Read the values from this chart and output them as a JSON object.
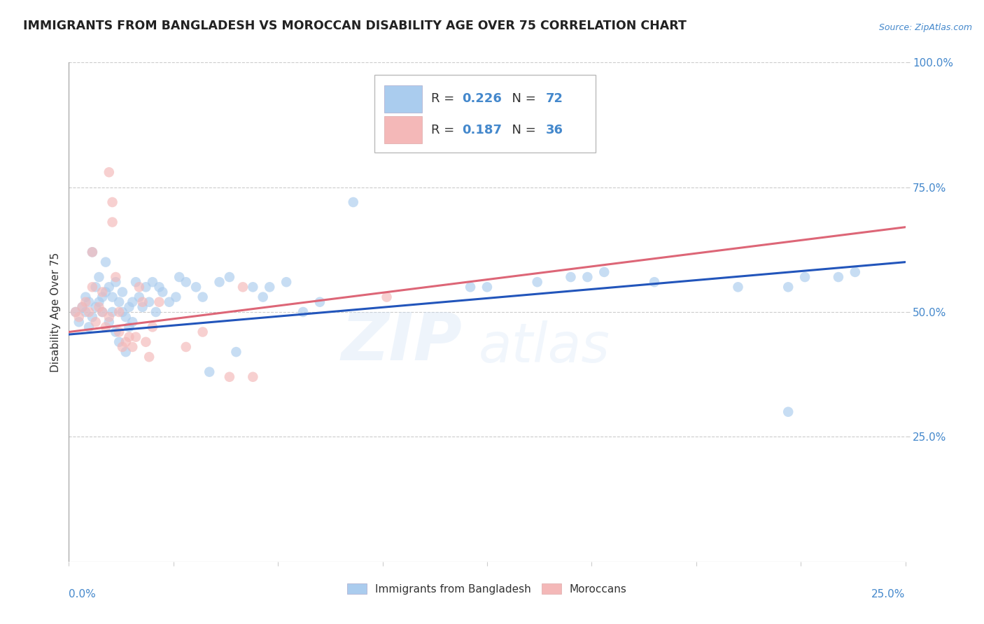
{
  "title": "IMMIGRANTS FROM BANGLADESH VS MOROCCAN DISABILITY AGE OVER 75 CORRELATION CHART",
  "source": "Source: ZipAtlas.com",
  "ylabel": "Disability Age Over 75",
  "watermark": "ZIPAtlas",
  "legend_entry1": {
    "color": "#a8c4e0",
    "r": "0.226",
    "n": "72",
    "label": "Immigrants from Bangladesh"
  },
  "legend_entry2": {
    "color": "#f4b8b8",
    "r": "0.187",
    "n": "36",
    "label": "Moroccans"
  },
  "bg_color": "#ffffff",
  "grid_color": "#cccccc",
  "blue_line_color": "#2255bb",
  "pink_line_color": "#dd6677",
  "blue_dot_color": "#aaccee",
  "pink_dot_color": "#f4b8b8",
  "axis_color": "#4488cc",
  "title_color": "#222222",
  "title_fontsize": 12.5,
  "label_fontsize": 11,
  "tick_fontsize": 11,
  "dot_size": 110,
  "dot_alpha": 0.65,
  "xlim": [
    0.0,
    0.25
  ],
  "ylim": [
    0.0,
    1.0
  ],
  "blue_trend_x0": 0.0,
  "blue_trend_y0": 0.455,
  "blue_trend_x1": 0.25,
  "blue_trend_y1": 0.6,
  "pink_trend_x0": 0.0,
  "pink_trend_y0": 0.46,
  "pink_trend_x1": 0.25,
  "pink_trend_y1": 0.67
}
